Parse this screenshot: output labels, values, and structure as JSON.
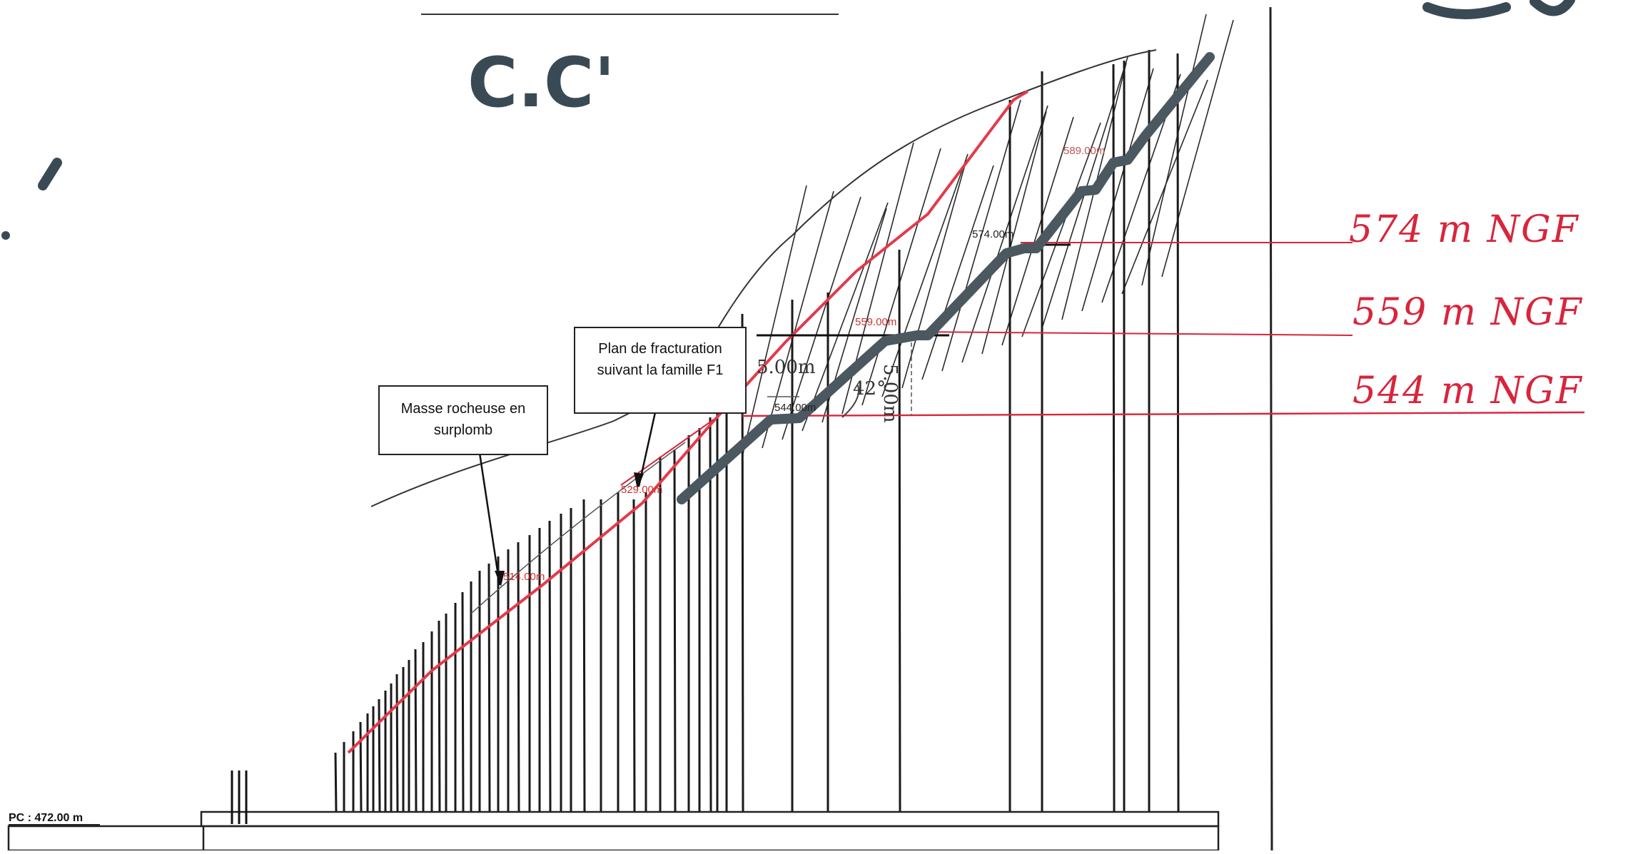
{
  "drawing": {
    "section_title": "C.C'",
    "callouts": {
      "masse": "Masse rocheuse en surplomb",
      "plan": "Plan de fracturation suivant la famille F1"
    },
    "handwritten_levels": [
      "574 m NGF",
      "559 m NGF",
      "544 m NGF"
    ],
    "dimension_labels": {
      "horizontal": "5.00m",
      "vertical": "5.00m",
      "angle": "42°"
    },
    "elevation_labels": [
      "589.00m",
      "574.00m",
      "559.00m",
      "544.00m",
      "529.00m",
      "514.00m"
    ],
    "reference_level": "PC : 472.00 m",
    "colors": {
      "slope": "#e33a4a",
      "bench": "#4b5860",
      "ink": "#1a1a1a",
      "annotation": "#d8253c"
    }
  }
}
